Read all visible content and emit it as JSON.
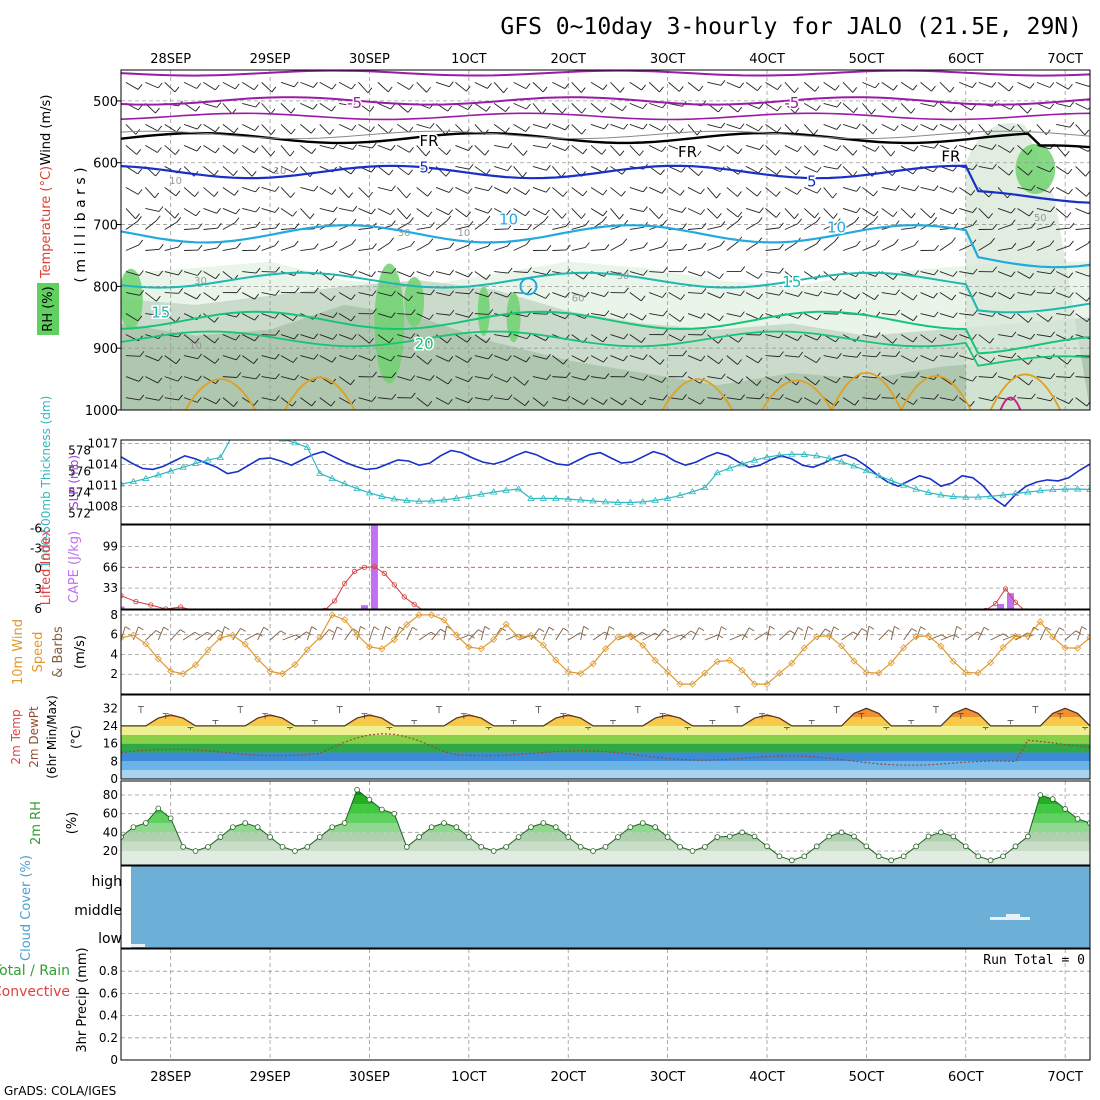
{
  "chart_data": {
    "type": "meteogram",
    "title": "GFS 0~10day 3-hourly for JALO (21.5E, 29N)",
    "footer": "GrADS: COLA/IGES",
    "date_labels": [
      "28SEP",
      "29SEP",
      "30SEP",
      "1OCT",
      "2OCT",
      "3OCT",
      "4OCT",
      "5OCT",
      "6OCT",
      "7OCT"
    ],
    "date_label_positions": [
      0.5,
      1.5,
      2.5,
      3.5,
      4.5,
      5.5,
      6.5,
      7.5,
      8.5,
      9.5
    ],
    "x_range_days": [
      0.0,
      9.75
    ],
    "colors": {
      "purple": "#9c1aa8",
      "blue": "#1e40d8",
      "cyan": "#22aade",
      "teal": "#1fb8b0",
      "green": "#18c478",
      "orange": "#e0a020",
      "red": "#d02020",
      "magenta": "#cc2288",
      "thick": "#1830c8",
      "slp": "#30b8c0",
      "cape": "#c070f0",
      "wind": "#e09a30",
      "barb": "#806040",
      "rh": "#30c030",
      "cloud": "#6cb0d8"
    },
    "panels": {
      "upper_air": {
        "ylabel_wind": "Wind (m/s)",
        "ylabel_temp": "Temperature (°C)",
        "ylabel_rh": "RH (%)",
        "ylabel_mb": "( m i l l i b a r s )",
        "pressure_ticks": [
          "500",
          "600",
          "700",
          "800",
          "900",
          "1000"
        ],
        "pressure_range": [
          450,
          1000
        ],
        "contour_labels": [
          {
            "text": "-5",
            "day": 2.35,
            "p": 503,
            "color": "purple"
          },
          {
            "text": "-5",
            "day": 6.75,
            "p": 503,
            "color": "purple"
          },
          {
            "text": "FR",
            "day": 3.1,
            "p": 565,
            "color": "black"
          },
          {
            "text": "FR",
            "day": 5.7,
            "p": 583,
            "color": "black"
          },
          {
            "text": "FR",
            "day": 8.35,
            "p": 590,
            "color": "black"
          },
          {
            "text": "5",
            "day": 3.05,
            "p": 608,
            "color": "blue"
          },
          {
            "text": "5",
            "day": 6.95,
            "p": 630,
            "color": "blue"
          },
          {
            "text": "10",
            "day": 3.9,
            "p": 692,
            "color": "cyan"
          },
          {
            "text": "10",
            "day": 7.2,
            "p": 705,
            "color": "cyan"
          },
          {
            "text": "15",
            "day": 0.4,
            "p": 842,
            "color": "teal"
          },
          {
            "text": "15",
            "day": 6.75,
            "p": 793,
            "color": "teal"
          },
          {
            "text": "20",
            "day": 3.05,
            "p": 893,
            "color": "green"
          }
        ],
        "rh_labels": [
          {
            "text": "10",
            "day": 0.55,
            "p": 628
          },
          {
            "text": "10",
            "day": 1.6,
            "p": 612
          },
          {
            "text": "30",
            "day": 2.85,
            "p": 712
          },
          {
            "text": "10",
            "day": 3.45,
            "p": 712
          },
          {
            "text": "30",
            "day": 5.05,
            "p": 782
          },
          {
            "text": "60",
            "day": 4.6,
            "p": 818
          },
          {
            "text": "30",
            "day": 0.8,
            "p": 790
          },
          {
            "text": "50",
            "day": 9.25,
            "p": 688
          },
          {
            "text": "10",
            "day": 0.75,
            "p": 895
          }
        ]
      },
      "thickness_slp": {
        "ylabel_thickness": "1000-500mb Thickness (dm)",
        "ylabel_slp": "SLP (mb)",
        "thickness_ticks": [
          "572",
          "574",
          "576",
          "578"
        ],
        "thickness_range": [
          571,
          579
        ],
        "slp_ticks": [
          "1008",
          "1011",
          "1014",
          "1017"
        ],
        "slp_range": [
          1005.5,
          1017.5
        ],
        "thickness": [
          577.4,
          576.8,
          576.3,
          576.2,
          576.5,
          577.0,
          577.5,
          577.2,
          576.8,
          576.4,
          575.8,
          576.0,
          576.6,
          577.2,
          577.3,
          577.0,
          576.6,
          577.1,
          577.6,
          577.9,
          577.4,
          576.9,
          576.5,
          576.2,
          576.3,
          576.7,
          577.1,
          577.0,
          576.6,
          576.8,
          577.5,
          578.0,
          577.8,
          577.3,
          576.9,
          576.7,
          577.0,
          577.5,
          577.9,
          577.6,
          577.1,
          576.7,
          576.6,
          577.1,
          577.6,
          577.8,
          577.3,
          576.8,
          576.9,
          577.4,
          577.9,
          577.6,
          577.0,
          576.6,
          576.9,
          577.4,
          577.8,
          577.5,
          576.9,
          576.4,
          576.6,
          577.1,
          577.5,
          577.2,
          576.6,
          576.4,
          576.8,
          577.3,
          577.6,
          577.2,
          576.5,
          575.7,
          575.0,
          574.6,
          575.1,
          575.6,
          575.3,
          574.6,
          574.9,
          575.6,
          575.4,
          574.6,
          573.4,
          572.7,
          573.8,
          574.6,
          575.0,
          575.2,
          575.1,
          575.4,
          576.1,
          576.7
        ]
      },
      "lifted_cape": {
        "ylabel_li": "Lifted Index",
        "ylabel_cape": "CAPE (J/kg)",
        "li_ticks": [
          "6",
          "3",
          "0",
          "-3",
          "-6"
        ],
        "li_range": [
          -6.5,
          6
        ],
        "cape_ticks": [
          "33",
          "66",
          "99"
        ],
        "cape_range": [
          0,
          133
        ],
        "cape_bars": [
          [
            0.0,
            4
          ],
          [
            2.45,
            6
          ],
          [
            2.55,
            133
          ],
          [
            8.85,
            8
          ],
          [
            8.95,
            25
          ]
        ],
        "li_points": [
          [
            0.0,
            4.0
          ],
          [
            0.15,
            4.9
          ],
          [
            0.3,
            5.4
          ],
          [
            0.45,
            6.0
          ],
          [
            0.6,
            5.7
          ],
          [
            0.75,
            6.3
          ],
          [
            2.05,
            6.2
          ],
          [
            2.15,
            4.8
          ],
          [
            2.25,
            2.2
          ],
          [
            2.35,
            0.4
          ],
          [
            2.45,
            -0.2
          ],
          [
            2.55,
            -0.3
          ],
          [
            2.65,
            0.7
          ],
          [
            2.75,
            2.4
          ],
          [
            2.85,
            4.2
          ],
          [
            2.95,
            5.3
          ],
          [
            3.05,
            6.3
          ],
          [
            8.7,
            6.2
          ],
          [
            8.8,
            5.2
          ],
          [
            8.9,
            3.0
          ],
          [
            9.0,
            5.0
          ],
          [
            9.1,
            6.3
          ]
        ]
      },
      "wind10m": {
        "ylabel": "10m Wind Speed & Barbs (m/s)",
        "ticks": [
          "2",
          "4",
          "6",
          "8"
        ],
        "range": [
          0,
          8.5
        ]
      },
      "temp2m": {
        "ylabel": "2m Temp 2m DewPt (6hr Min/Max) (°C)",
        "ticks": [
          "0",
          "8",
          "16",
          "24",
          "32"
        ],
        "range": [
          0,
          38
        ]
      },
      "rh2m": {
        "ylabel": "2m RH (%)",
        "ticks": [
          "20",
          "40",
          "60",
          "80"
        ],
        "range": [
          5,
          95
        ]
      },
      "cloud": {
        "ylabel": "Cloud Cover (%)",
        "levels": [
          "high",
          "middle",
          "low"
        ]
      },
      "precip": {
        "ylabel_total": "Total / Rain",
        "ylabel_conv": "Convective",
        "ylabel_3hr": "3hr Precip (mm)",
        "ticks": [
          "0",
          "0.2",
          "0.4",
          "0.6",
          "0.8"
        ],
        "range": [
          0,
          1.0
        ],
        "run_total": "Run Total = 0"
      }
    }
  }
}
